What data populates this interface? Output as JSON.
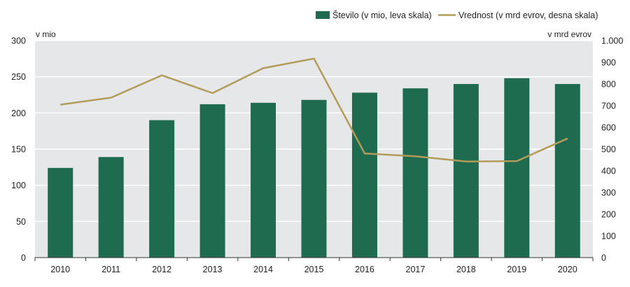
{
  "chart_data": {
    "type": "bar",
    "categories": [
      "2010",
      "2011",
      "2012",
      "2013",
      "2014",
      "2015",
      "2016",
      "2017",
      "2018",
      "2019",
      "2020"
    ],
    "series": [
      {
        "name": "Število (v mio, leva skala)",
        "type": "bar",
        "axis": "left",
        "color": "#1e6b4f",
        "values": [
          124,
          139,
          190,
          212,
          214,
          218,
          228,
          234,
          240,
          248,
          240
        ]
      },
      {
        "name": "Vrednost (v mrd evrov, desna skala)",
        "type": "line",
        "axis": "right",
        "color": "#b39b5a",
        "values": [
          705,
          737,
          840,
          758,
          873,
          917,
          480,
          467,
          443,
          445,
          549
        ]
      }
    ],
    "y_left": {
      "unit_label": "v mio",
      "range": [
        0,
        300
      ],
      "ticks": [
        0,
        50,
        100,
        150,
        200,
        250,
        300
      ],
      "tick_labels": [
        "0",
        "50",
        "100",
        "150",
        "200",
        "250",
        "300"
      ]
    },
    "y_right": {
      "unit_label": "v mrd evrov",
      "range": [
        0,
        1000
      ],
      "ticks": [
        0,
        100,
        200,
        300,
        400,
        500,
        600,
        700,
        800,
        900,
        1000
      ],
      "tick_labels": [
        "0",
        "100",
        "200",
        "300",
        "400",
        "500",
        "600",
        "700",
        "800",
        "900",
        "1.000"
      ]
    },
    "grid": true,
    "legend_position": "top-right",
    "title": "",
    "xlabel": ""
  }
}
